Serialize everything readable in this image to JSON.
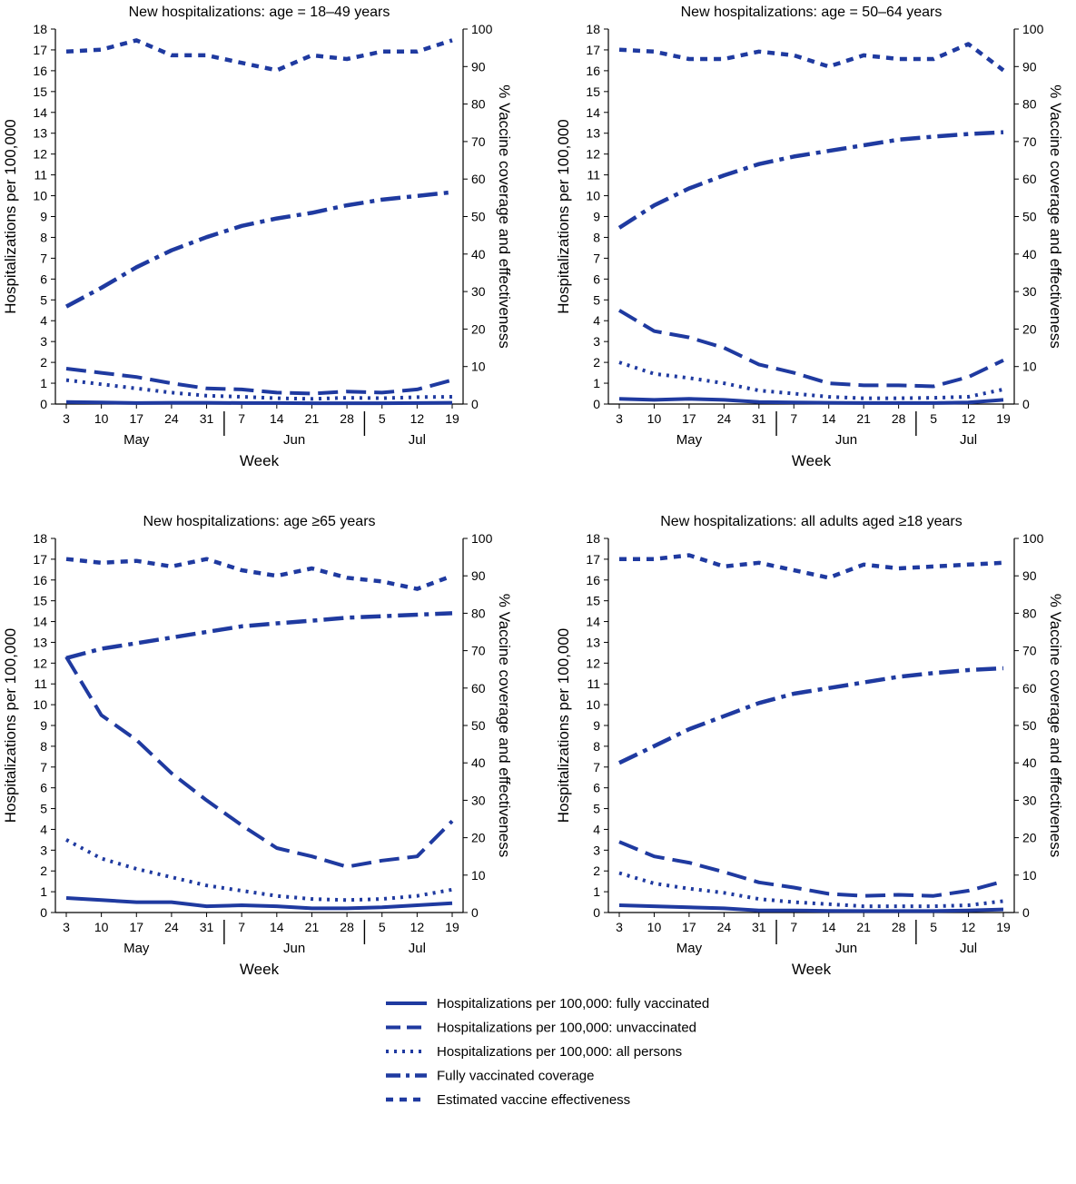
{
  "figure": {
    "legend": [
      {
        "series_key": "fully_vaccinated",
        "label": "Hospitalizations per 100,000: fully vaccinated",
        "style": "solid"
      },
      {
        "series_key": "unvaccinated",
        "label": "Hospitalizations per 100,000: unvaccinated",
        "style": "dashed"
      },
      {
        "series_key": "all_persons",
        "label": "Hospitalizations per 100,000: all persons",
        "style": "dotted"
      },
      {
        "series_key": "coverage",
        "label": "Fully vaccinated coverage",
        "style": "dashdot"
      },
      {
        "series_key": "effectiveness",
        "label": "Estimated vaccine effectiveness",
        "style": "shortdash"
      }
    ],
    "line_color": "#1f3aa0"
  },
  "chart_data": [
    {
      "type": "line",
      "title": "New hospitalizations: age = 18–49 years",
      "xlabel": "Week",
      "ylabel_left": "Hospitalizations per 100,000",
      "ylabel_right": "% Vaccine coverage and effectiveness",
      "ylim_left": [
        0,
        18
      ],
      "ylim_right": [
        0,
        100
      ],
      "x": [
        "3",
        "10",
        "17",
        "24",
        "31",
        "7",
        "14",
        "21",
        "28",
        "5",
        "12",
        "19"
      ],
      "months": [
        {
          "label": "May",
          "center_index": 2
        },
        {
          "label": "Jun",
          "center_index": 6.5
        },
        {
          "label": "Jul",
          "center_index": 10
        }
      ],
      "month_breaks": [
        4.5,
        8.5
      ],
      "series": [
        {
          "key": "fully_vaccinated",
          "axis": "left",
          "values": [
            0.1,
            0.08,
            0.05,
            0.06,
            0.06,
            0.05,
            0.05,
            0.04,
            0.04,
            0.04,
            0.05,
            0.06
          ]
        },
        {
          "key": "unvaccinated",
          "axis": "left",
          "values": [
            1.7,
            1.5,
            1.3,
            1.0,
            0.75,
            0.7,
            0.55,
            0.5,
            0.6,
            0.55,
            0.7,
            1.15
          ]
        },
        {
          "key": "all_persons",
          "axis": "left",
          "values": [
            1.15,
            0.95,
            0.75,
            0.55,
            0.4,
            0.35,
            0.28,
            0.25,
            0.3,
            0.28,
            0.33,
            0.35
          ]
        },
        {
          "key": "coverage",
          "axis": "right",
          "values": [
            26,
            31,
            36.5,
            41,
            44.5,
            47.5,
            49.5,
            51,
            53,
            54.5,
            55.5,
            56.5
          ]
        },
        {
          "key": "effectiveness",
          "axis": "right",
          "values": [
            94,
            94.5,
            97,
            93,
            93,
            91,
            89,
            93,
            92,
            94,
            94,
            97
          ]
        }
      ]
    },
    {
      "type": "line",
      "title": "New hospitalizations: age = 50–64 years",
      "xlabel": "Week",
      "ylabel_left": "Hospitalizations per 100,000",
      "ylabel_right": "% Vaccine coverage and effectiveness",
      "ylim_left": [
        0,
        18
      ],
      "ylim_right": [
        0,
        100
      ],
      "x": [
        "3",
        "10",
        "17",
        "24",
        "31",
        "7",
        "14",
        "21",
        "28",
        "5",
        "12",
        "19"
      ],
      "months": [
        {
          "label": "May",
          "center_index": 2
        },
        {
          "label": "Jun",
          "center_index": 6.5
        },
        {
          "label": "Jul",
          "center_index": 10
        }
      ],
      "month_breaks": [
        4.5,
        8.5
      ],
      "series": [
        {
          "key": "fully_vaccinated",
          "axis": "left",
          "values": [
            0.25,
            0.2,
            0.25,
            0.2,
            0.1,
            0.08,
            0.06,
            0.05,
            0.05,
            0.05,
            0.08,
            0.2
          ]
        },
        {
          "key": "unvaccinated",
          "axis": "left",
          "values": [
            4.5,
            3.5,
            3.2,
            2.7,
            1.9,
            1.5,
            1.0,
            0.9,
            0.9,
            0.85,
            1.3,
            2.1
          ]
        },
        {
          "key": "all_persons",
          "axis": "left",
          "values": [
            2.0,
            1.45,
            1.25,
            1.0,
            0.65,
            0.5,
            0.35,
            0.28,
            0.28,
            0.3,
            0.35,
            0.7
          ]
        },
        {
          "key": "coverage",
          "axis": "right",
          "values": [
            47,
            53,
            57.5,
            61,
            64,
            66,
            67.5,
            69,
            70.5,
            71.3,
            72,
            72.5
          ]
        },
        {
          "key": "effectiveness",
          "axis": "right",
          "values": [
            94.5,
            94,
            92,
            92,
            94,
            93,
            90,
            93,
            92,
            92,
            96,
            89
          ]
        }
      ]
    },
    {
      "type": "line",
      "title": "New hospitalizations: age ≥65 years",
      "xlabel": "Week",
      "ylabel_left": "Hospitalizations per 100,000",
      "ylabel_right": "% Vaccine coverage and effectiveness",
      "ylim_left": [
        0,
        18
      ],
      "ylim_right": [
        0,
        100
      ],
      "x": [
        "3",
        "10",
        "17",
        "24",
        "31",
        "7",
        "14",
        "21",
        "28",
        "5",
        "12",
        "19"
      ],
      "months": [
        {
          "label": "May",
          "center_index": 2
        },
        {
          "label": "Jun",
          "center_index": 6.5
        },
        {
          "label": "Jul",
          "center_index": 10
        }
      ],
      "month_breaks": [
        4.5,
        8.5
      ],
      "series": [
        {
          "key": "fully_vaccinated",
          "axis": "left",
          "values": [
            0.7,
            0.6,
            0.5,
            0.5,
            0.3,
            0.35,
            0.3,
            0.2,
            0.2,
            0.25,
            0.35,
            0.45
          ]
        },
        {
          "key": "unvaccinated",
          "axis": "left",
          "values": [
            12.3,
            9.5,
            8.3,
            6.7,
            5.4,
            4.2,
            3.1,
            2.7,
            2.2,
            2.5,
            2.7,
            4.4
          ]
        },
        {
          "key": "all_persons",
          "axis": "left",
          "values": [
            3.5,
            2.6,
            2.1,
            1.7,
            1.3,
            1.05,
            0.8,
            0.65,
            0.6,
            0.65,
            0.8,
            1.1
          ]
        },
        {
          "key": "coverage",
          "axis": "right",
          "values": [
            68,
            70.5,
            72,
            73.5,
            75,
            76.5,
            77.3,
            78,
            78.8,
            79.2,
            79.6,
            80
          ]
        },
        {
          "key": "effectiveness",
          "axis": "right",
          "values": [
            94.5,
            93.5,
            94,
            92.5,
            94.5,
            91.5,
            90,
            92,
            89.5,
            88.5,
            86.5,
            90
          ]
        }
      ]
    },
    {
      "type": "line",
      "title": "New hospitalizations: all adults aged ≥18 years",
      "xlabel": "Week",
      "ylabel_left": "Hospitalizations per 100,000",
      "ylabel_right": "% Vaccine coverage and effectiveness",
      "ylim_left": [
        0,
        18
      ],
      "ylim_right": [
        0,
        100
      ],
      "x": [
        "3",
        "10",
        "17",
        "24",
        "31",
        "7",
        "14",
        "21",
        "28",
        "5",
        "12",
        "19"
      ],
      "months": [
        {
          "label": "May",
          "center_index": 2
        },
        {
          "label": "Jun",
          "center_index": 6.5
        },
        {
          "label": "Jul",
          "center_index": 10
        }
      ],
      "month_breaks": [
        4.5,
        8.5
      ],
      "series": [
        {
          "key": "fully_vaccinated",
          "axis": "left",
          "values": [
            0.35,
            0.3,
            0.25,
            0.2,
            0.1,
            0.1,
            0.08,
            0.07,
            0.07,
            0.07,
            0.1,
            0.15
          ]
        },
        {
          "key": "unvaccinated",
          "axis": "left",
          "values": [
            3.4,
            2.7,
            2.4,
            1.95,
            1.45,
            1.2,
            0.9,
            0.8,
            0.85,
            0.8,
            1.05,
            1.5
          ]
        },
        {
          "key": "all_persons",
          "axis": "left",
          "values": [
            1.9,
            1.4,
            1.15,
            0.95,
            0.65,
            0.5,
            0.4,
            0.3,
            0.3,
            0.3,
            0.35,
            0.55
          ]
        },
        {
          "key": "coverage",
          "axis": "right",
          "values": [
            40,
            44.5,
            49,
            52.5,
            56,
            58.5,
            60,
            61.5,
            63,
            64,
            64.8,
            65.3
          ]
        },
        {
          "key": "effectiveness",
          "axis": "right",
          "values": [
            94.5,
            94.5,
            95.5,
            92.5,
            93.5,
            91.5,
            89.5,
            93,
            92,
            92.5,
            93,
            93.5
          ]
        }
      ]
    }
  ]
}
